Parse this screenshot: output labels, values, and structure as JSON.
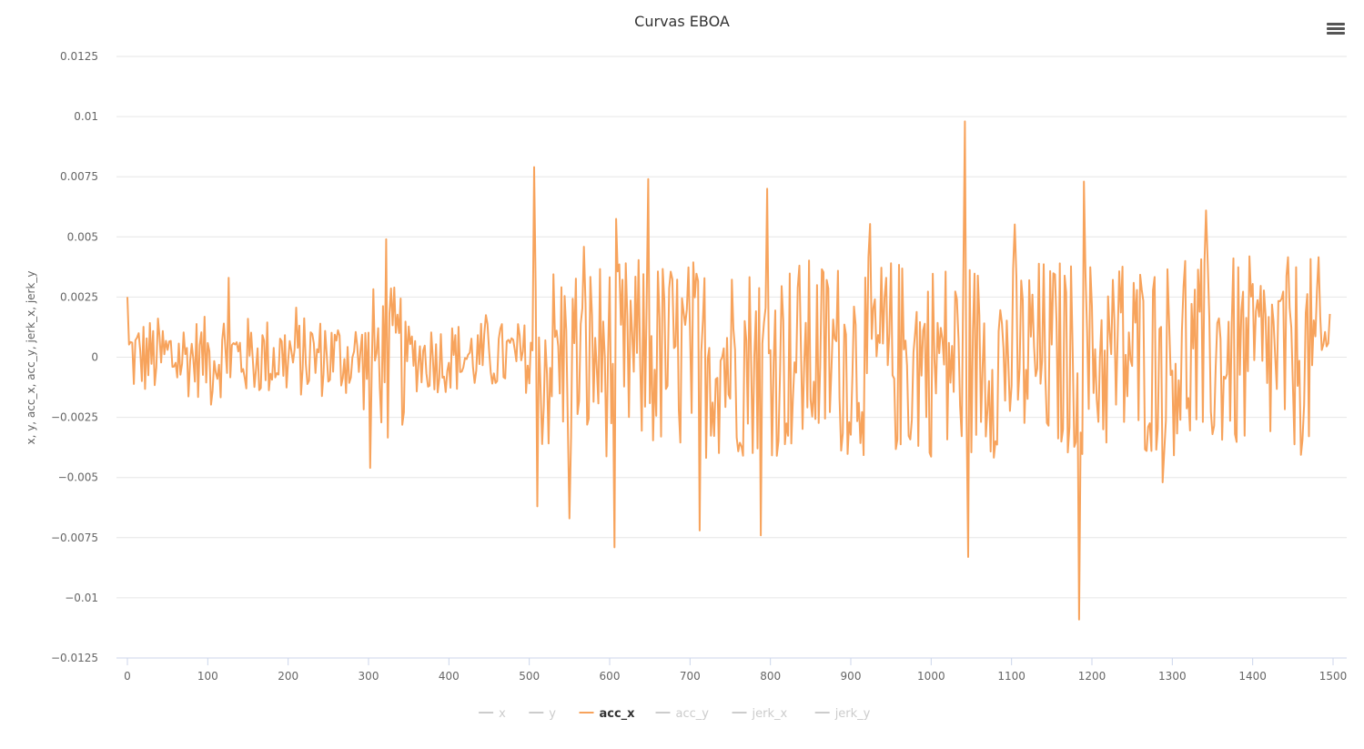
{
  "chart_data": {
    "type": "line",
    "title": "Curvas EBOA",
    "xlabel": "",
    "ylabel": "x, y, acc_x, acc_y, jerk_x, jerk_y",
    "xlim": [
      0,
      1500
    ],
    "ylim": [
      -0.0125,
      0.0125
    ],
    "x_ticks": [
      "0",
      "100",
      "200",
      "300",
      "400",
      "500",
      "600",
      "700",
      "800",
      "900",
      "1000",
      "1100",
      "1200",
      "1300",
      "1400",
      "1500"
    ],
    "y_ticks": [
      "0.0125",
      "0.01",
      "0.0075",
      "0.005",
      "0.0025",
      "0",
      "−0.0025",
      "−0.005",
      "−0.0075",
      "−0.01",
      "−0.0125"
    ],
    "grid": "horizontal",
    "legend_position": "bottom-center",
    "legend": [
      {
        "name": "x",
        "active": false,
        "color": "#cccccc"
      },
      {
        "name": "y",
        "active": false,
        "color": "#cccccc"
      },
      {
        "name": "acc_x",
        "active": true,
        "color": "#f7a35c"
      },
      {
        "name": "acc_y",
        "active": false,
        "color": "#cccccc"
      },
      {
        "name": "jerk_x",
        "active": false,
        "color": "#cccccc"
      },
      {
        "name": "jerk_y",
        "active": false,
        "color": "#cccccc"
      }
    ],
    "series": [
      {
        "name": "acc_x",
        "color": "#f7a35c",
        "x_range": [
          0,
          1496
        ],
        "notable_points": [
          {
            "x": 0,
            "y": 0.0025
          },
          {
            "x": 127,
            "y": 0.0033
          },
          {
            "x": 303,
            "y": -0.0046
          },
          {
            "x": 322,
            "y": 0.0049
          },
          {
            "x": 506,
            "y": 0.0079
          },
          {
            "x": 510,
            "y": -0.0062
          },
          {
            "x": 550,
            "y": -0.0067
          },
          {
            "x": 606,
            "y": -0.0079
          },
          {
            "x": 649,
            "y": 0.0074
          },
          {
            "x": 712,
            "y": -0.0072
          },
          {
            "x": 788,
            "y": -0.0074
          },
          {
            "x": 796,
            "y": 0.007
          },
          {
            "x": 1042,
            "y": 0.0098
          },
          {
            "x": 1046,
            "y": -0.0083
          },
          {
            "x": 1185,
            "y": -0.0109
          },
          {
            "x": 1191,
            "y": 0.0073
          },
          {
            "x": 1343,
            "y": 0.0061
          },
          {
            "x": 1496,
            "y": 0.0018
          }
        ]
      }
    ]
  },
  "menu_icon": "hamburger-menu-icon"
}
